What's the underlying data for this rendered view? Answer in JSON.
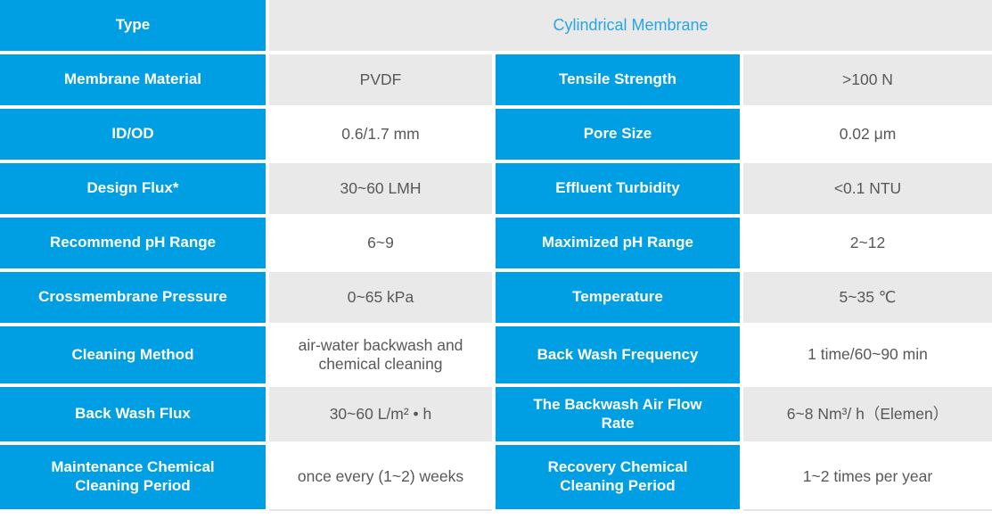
{
  "table": {
    "colors": {
      "blue": "#009fe3",
      "cell_gray": "#e9e9ea",
      "value_text": "#58585a",
      "header_value_text": "#2aa5df"
    },
    "header": {
      "label": "Type",
      "value": "Cylindrical Membrane"
    },
    "rows": [
      {
        "l1": "Membrane Material",
        "v1": "PVDF",
        "l2": "Tensile Strength",
        "v2": ">100 N",
        "shade": "gray"
      },
      {
        "l1": "ID/OD",
        "v1": "0.6/1.7 mm",
        "l2": "Pore Size",
        "v2": "0.02 μm",
        "shade": "white"
      },
      {
        "l1": "Design Flux*",
        "v1": "30~60 LMH",
        "l2": "Effluent Turbidity",
        "v2": "<0.1 NTU",
        "shade": "gray"
      },
      {
        "l1": "Recommend pH Range",
        "v1": "6~9",
        "l2": "Maximized pH Range",
        "v2": "2~12",
        "shade": "white"
      },
      {
        "l1": "Crossmembrane Pressure",
        "v1": "0~65 kPa",
        "l2": "Temperature",
        "v2": "5~35 ℃",
        "shade": "gray"
      },
      {
        "l1": "Cleaning Method",
        "v1": "air-water backwash and chemical cleaning",
        "l2": "Back Wash Frequency",
        "v2": "1 time/60~90 min",
        "shade": "white"
      },
      {
        "l1": "Back Wash Flux",
        "v1": "30~60 L/m² • h",
        "l2": "The Backwash Air Flow Rate",
        "v2": "6~8 Nm³/ h（Elemen）",
        "shade": "gray"
      },
      {
        "l1": "Maintenance Chemical Cleaning Period",
        "v1": "once every (1~2) weeks",
        "l2": "Recovery Chemical Cleaning Period",
        "v2": "1~2 times per year",
        "shade": "white"
      }
    ]
  }
}
